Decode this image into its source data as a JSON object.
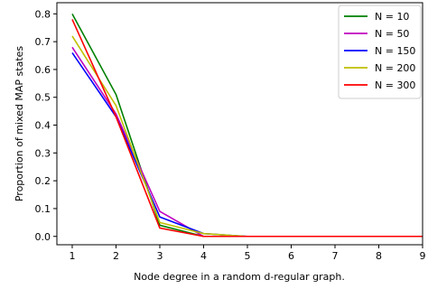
{
  "chart_data": {
    "type": "line",
    "title": "",
    "xlabel": "Node degree in a random d-regular graph.",
    "ylabel": "Proportion of mixed MAP states",
    "x": [
      1,
      2,
      3,
      4,
      5,
      6,
      7,
      8,
      9
    ],
    "xlim": [
      0.65,
      9.0
    ],
    "ylim": [
      -0.03,
      0.84
    ],
    "xticks": [
      "1",
      "2",
      "3",
      "4",
      "5",
      "6",
      "7",
      "8",
      "9"
    ],
    "yticks": [
      "0.0",
      "0.1",
      "0.2",
      "0.3",
      "0.4",
      "0.5",
      "0.6",
      "0.7",
      "0.8"
    ],
    "grid": false,
    "legend_position": "top-right",
    "series": [
      {
        "name": "N = 10",
        "color": "#008000",
        "values": [
          0.8,
          0.51,
          0.04,
          0.0,
          0.0,
          0.0,
          0.0,
          0.0,
          0.0
        ]
      },
      {
        "name": "N = 50",
        "color": "#bf00bf",
        "values": [
          0.68,
          0.44,
          0.09,
          0.0,
          0.0,
          0.0,
          0.0,
          0.0,
          0.0
        ]
      },
      {
        "name": "N = 150",
        "color": "#0000ff",
        "values": [
          0.66,
          0.43,
          0.07,
          0.01,
          0.0,
          0.0,
          0.0,
          0.0,
          0.0
        ]
      },
      {
        "name": "N = 200",
        "color": "#bfbf00",
        "values": [
          0.72,
          0.47,
          0.05,
          0.01,
          0.0,
          0.0,
          0.0,
          0.0,
          0.0
        ]
      },
      {
        "name": "N = 300",
        "color": "#ff0000",
        "values": [
          0.78,
          0.43,
          0.03,
          0.0,
          0.0,
          0.0,
          0.0,
          0.0,
          0.0
        ]
      }
    ]
  }
}
